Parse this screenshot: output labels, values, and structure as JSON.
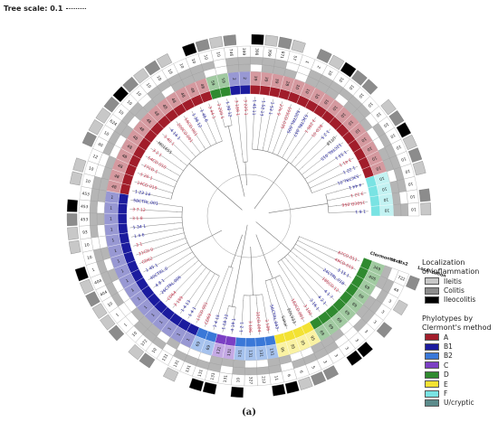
{
  "figure": {
    "scale_label": "Tree scale: 0.1",
    "caption": "(a)"
  },
  "rings": {
    "headers": [
      "Clermont's",
      "stx1",
      "stx2",
      "Localization"
    ]
  },
  "legend_localization": {
    "title_line1": "Localization",
    "title_line2": "of inflammation",
    "items": [
      {
        "label": "Ileitis",
        "color": "#c8c8c8"
      },
      {
        "label": "Colitis",
        "color": "#8c8c8c"
      },
      {
        "label": "Ileocolitis",
        "color": "#000000"
      }
    ]
  },
  "legend_phylotypes": {
    "title_line1": "Phylotypes by",
    "title_line2": "Clermont's method",
    "items": [
      {
        "label": "A",
        "color": "#a11d2a"
      },
      {
        "label": "B1",
        "color": "#1b1b9e"
      },
      {
        "label": "B2",
        "color": "#3a78d8"
      },
      {
        "label": "C",
        "color": "#7b3fc4"
      },
      {
        "label": "D",
        "color": "#2f8a2f"
      },
      {
        "label": "E",
        "color": "#f3e233"
      },
      {
        "label": "F",
        "color": "#79e3e3"
      },
      {
        "label": "U/cryptic",
        "color": "#5c8c8c"
      }
    ]
  },
  "outer_st_labels": [
    "722",
    "44",
    "3",
    "3",
    "3",
    "3",
    "3",
    "3",
    "3",
    "3",
    "5",
    "6",
    "6",
    "11",
    "212",
    "327",
    "10",
    "131",
    "131",
    "131",
    "131",
    "131",
    "131",
    "10",
    "372",
    "10",
    "1",
    "1",
    "10",
    "404",
    "404",
    "1",
    "10",
    "10",
    "93",
    "453",
    "453",
    "453",
    "10",
    "10",
    "12",
    "40",
    "10",
    "624",
    "10",
    "10",
    "10",
    "10",
    "10",
    "10",
    "10",
    "10",
    "10",
    "10",
    "746",
    "399",
    "398",
    "399",
    "871",
    "57",
    "1",
    "2",
    "10",
    "10",
    "10",
    "10",
    "10",
    "10",
    "10",
    "10",
    "10",
    "10",
    "10",
    "10",
    "10",
    "10"
  ],
  "colored_st_labels": [
    "349",
    "405",
    "69",
    "69",
    "69",
    "69",
    "69",
    "69",
    "69",
    "95",
    "95",
    "95",
    "95",
    "131",
    "131",
    "131",
    "131",
    "131",
    "131",
    "69",
    "69",
    "1",
    "1",
    "1",
    "1",
    "1",
    "1",
    "1",
    "1",
    "1",
    "1",
    "1",
    "1",
    "1",
    "1",
    "1",
    "1",
    "1",
    "48",
    "48",
    "48",
    "48",
    "48",
    "48",
    "48",
    "48",
    "48",
    "48",
    "48",
    "48",
    "48",
    "48",
    "59",
    "59",
    "2",
    "2",
    "39",
    "39",
    "39",
    "28",
    "10",
    "10",
    "10",
    "10",
    "10",
    "10",
    "10",
    "10",
    "10",
    "10",
    "10",
    "10",
    "10",
    "10",
    "10",
    "10"
  ],
  "strain_labels": [
    {
      "text": "87CD.011",
      "color": "#c8334a"
    },
    {
      "text": "49CD.019",
      "color": "#c8334a"
    },
    {
      "text": "3 15 1",
      "color": "#1b1b9e"
    },
    {
      "text": "24CTRL.018",
      "color": "#1b1b9e"
    },
    {
      "text": "185CD.12",
      "color": "#c8334a"
    },
    {
      "text": "4 1 7",
      "color": "#1b1b9e"
    },
    {
      "text": "4 2 1",
      "color": "#1b1b9e"
    },
    {
      "text": "3 16 1",
      "color": "#1b1b9e"
    },
    {
      "text": "3 190",
      "color": "#c8334a"
    },
    {
      "text": "182CD.001",
      "color": "#c8334a"
    },
    {
      "text": "EDL933",
      "color": "#333333"
    },
    {
      "text": "Sakai",
      "color": "#333333"
    },
    {
      "text": "56CTRL.043",
      "color": "#1b1b9e"
    },
    {
      "text": "3 186",
      "color": "#c8334a"
    },
    {
      "text": "35CD.004",
      "color": "#c8334a"
    },
    {
      "text": "3 186",
      "color": "#c8334a"
    },
    {
      "text": "1 2 1",
      "color": "#1b1b9e"
    },
    {
      "text": "4 19 1",
      "color": "#1b1b9e"
    },
    {
      "text": "1 18 12",
      "color": "#1b1b9e"
    },
    {
      "text": "1 4 15",
      "color": "#1b1b9e"
    },
    {
      "text": "CD69",
      "color": "#c8334a"
    },
    {
      "text": "17CD.001",
      "color": "#c8334a"
    },
    {
      "text": "1 4 1",
      "color": "#1b1b9e"
    },
    {
      "text": "1 4 13",
      "color": "#1b1b9e"
    },
    {
      "text": "3 189",
      "color": "#c8334a"
    },
    {
      "text": "CD64",
      "color": "#c8334a"
    },
    {
      "text": "26CTRL.006",
      "color": "#1b1b9e"
    },
    {
      "text": "4 8 1",
      "color": "#1b1b9e"
    },
    {
      "text": "40CTRL.0",
      "color": "#1b1b9e"
    },
    {
      "text": "1 45 1",
      "color": "#1b1b9e"
    },
    {
      "text": "CD62",
      "color": "#c8334a"
    },
    {
      "text": "21CD.0",
      "color": "#c8334a"
    },
    {
      "text": "3 1",
      "color": "#c8334a"
    },
    {
      "text": "1 4 6",
      "color": "#1b1b9e"
    },
    {
      "text": "1 34 1",
      "color": "#1b1b9e"
    },
    {
      "text": "3 1 8",
      "color": "#c8334a"
    },
    {
      "text": "3 7 12",
      "color": "#c8334a"
    },
    {
      "text": "58CTRL.001",
      "color": "#1b1b9e"
    },
    {
      "text": "1 23 14",
      "color": "#1b1b9e"
    },
    {
      "text": "14CD.019",
      "color": "#c8334a"
    },
    {
      "text": "3 20 1",
      "color": "#c8334a"
    },
    {
      "text": "77CD.1",
      "color": "#c8334a"
    },
    {
      "text": "54CD.010",
      "color": "#c8334a"
    },
    {
      "text": "3 2 1",
      "color": "#c8334a"
    },
    {
      "text": "M01655",
      "color": "#333333"
    },
    {
      "text": "3 40 1",
      "color": "#c8334a"
    },
    {
      "text": "4 14 1",
      "color": "#1b1b9e"
    },
    {
      "text": "200CD.001",
      "color": "#c8334a"
    },
    {
      "text": "56CD.001",
      "color": "#c8334a"
    },
    {
      "text": "1 38 12",
      "color": "#1b1b9e"
    },
    {
      "text": "1 46 6",
      "color": "#1b1b9e"
    },
    {
      "text": "3 44 1",
      "color": "#c8334a"
    },
    {
      "text": "3 200 1",
      "color": "#c8334a"
    },
    {
      "text": "1 38 12",
      "color": "#1b1b9e"
    },
    {
      "text": "3 188 1",
      "color": "#c8334a"
    },
    {
      "text": "3 225 1",
      "color": "#c8334a"
    },
    {
      "text": "1 45 11",
      "color": "#1b1b9e"
    },
    {
      "text": "1 52 13",
      "color": "#1b1b9e"
    },
    {
      "text": "1 53 1",
      "color": "#1b1b9e"
    },
    {
      "text": "27k 9",
      "color": "#c8334a"
    },
    {
      "text": "193CD.035",
      "color": "#c8334a"
    },
    {
      "text": "52CTRL.005",
      "color": "#1b1b9e"
    },
    {
      "text": "53CTRL.057",
      "color": "#1b1b9e"
    },
    {
      "text": "3 206 1",
      "color": "#c8334a"
    },
    {
      "text": "8CD 01",
      "color": "#c8334a"
    },
    {
      "text": "1 2 5",
      "color": "#1b1b9e"
    },
    {
      "text": "UT18",
      "color": "#333333"
    },
    {
      "text": "12CTRL.015",
      "color": "#1b1b9e"
    },
    {
      "text": "1 53 1",
      "color": "#1b1b9e"
    },
    {
      "text": "3 41 1",
      "color": "#c8334a"
    },
    {
      "text": "1 22 1",
      "color": "#1b1b9e"
    },
    {
      "text": "53CTRL.01",
      "color": "#1b1b9e"
    },
    {
      "text": "4 44 1",
      "color": "#1b1b9e"
    },
    {
      "text": "3 12 1",
      "color": "#c8334a"
    },
    {
      "text": "150CD.056",
      "color": "#c8334a"
    },
    {
      "text": "1 6 1",
      "color": "#1b1b9e"
    }
  ],
  "tips": {
    "phylotypes": [
      "D",
      "D",
      "D",
      "D",
      "D",
      "D",
      "D",
      "D",
      "D",
      "E",
      "E",
      "E",
      "E",
      "B2",
      "B2",
      "B2",
      "B2",
      "C",
      "C",
      "B2",
      "B2",
      "B1",
      "B1",
      "B1",
      "B1",
      "B1",
      "B1",
      "B1",
      "B1",
      "B1",
      "B1",
      "B1",
      "B1",
      "B1",
      "B1",
      "B1",
      "B1",
      "B1",
      "A",
      "A",
      "A",
      "A",
      "A",
      "A",
      "A",
      "A",
      "A",
      "A",
      "A",
      "A",
      "A",
      "A",
      "D",
      "D",
      "B1",
      "B1",
      "A",
      "A",
      "A",
      "A",
      "A",
      "A",
      "A",
      "A",
      "A",
      "A",
      "A",
      "A",
      "A",
      "A",
      "A",
      "A",
      "F",
      "F",
      "F",
      "F"
    ],
    "stx1": [
      1,
      1,
      0,
      1,
      1,
      0,
      0,
      1,
      1,
      1,
      0,
      0,
      1,
      1,
      0,
      0,
      1,
      1,
      1,
      0,
      0,
      0,
      1,
      0,
      1,
      1,
      1,
      0,
      0,
      0,
      1,
      0,
      1,
      0,
      0,
      1,
      0,
      1,
      1,
      1,
      1,
      0,
      0,
      1,
      0,
      1,
      1,
      1,
      0,
      1,
      1,
      1,
      0,
      0,
      1,
      1,
      0,
      1,
      1,
      1,
      0,
      1,
      1,
      1,
      0,
      1,
      1,
      1,
      0,
      0,
      1,
      1,
      0,
      1,
      1,
      1
    ],
    "stx2": [
      0,
      1,
      1,
      1,
      1,
      1,
      0,
      0,
      1,
      1,
      1,
      1,
      0,
      1,
      1,
      1,
      1,
      0,
      1,
      1,
      1,
      1,
      0,
      1,
      1,
      1,
      0,
      0,
      1,
      1,
      1,
      1,
      1,
      0,
      1,
      1,
      1,
      1,
      1,
      0,
      0,
      1,
      1,
      1,
      1,
      1,
      0,
      1,
      1,
      1,
      1,
      1,
      1,
      0,
      1,
      1,
      1,
      1,
      1,
      0,
      0,
      1,
      1,
      1,
      1,
      1,
      1,
      0,
      1,
      1,
      1,
      1,
      1,
      1,
      0,
      1
    ],
    "localization": [
      "colitis",
      "none",
      "ileitis",
      "none",
      "colitis",
      "none",
      "ileocolitis",
      "ileocolitis",
      "none",
      "colitis",
      "colitis",
      "ileitis",
      "ileocolitis",
      "ileocolitis",
      "none",
      "none",
      "ileocolitis",
      "none",
      "ileocolitis",
      "ileocolitis",
      "none",
      "ileitis",
      "none",
      "colitis",
      "ileitis",
      "none",
      "colitis",
      "ileitis",
      "ileitis",
      "colitis",
      "ileitis",
      "ileocolitis",
      "none",
      "ileitis",
      "ileitis",
      "colitis",
      "ileocolitis",
      "none",
      "ileitis",
      "ileitis",
      "none",
      "colitis",
      "ileitis",
      "ileitis",
      "colitis",
      "ileocolitis",
      "colitis",
      "ileitis",
      "colitis",
      "ileitis",
      "none",
      "ileocolitis",
      "colitis",
      "ileitis",
      "colitis",
      "none",
      "ileocolitis",
      "ileitis",
      "colitis",
      "ileitis",
      "none",
      "colitis",
      "ileitis",
      "ileocolitis",
      "colitis",
      "colitis",
      "none",
      "ileitis",
      "colitis",
      "ileocolitis",
      "ileitis",
      "colitis",
      "ileitis",
      "none",
      "colitis",
      "ileitis"
    ]
  }
}
